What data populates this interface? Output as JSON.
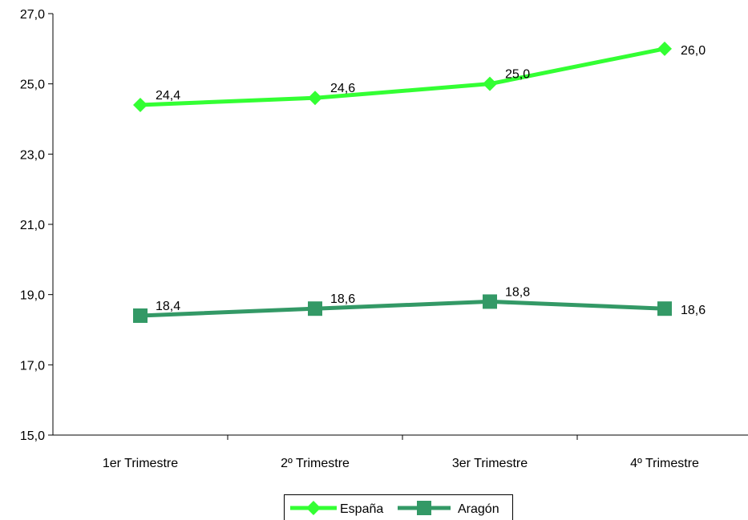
{
  "chart_data": {
    "type": "line",
    "categories": [
      "1er Trimestre",
      "2º Trimestre",
      "3er Trimestre",
      "4º Trimestre"
    ],
    "series": [
      {
        "name": "España",
        "values": [
          24.4,
          24.6,
          25.0,
          26.0
        ],
        "labels": [
          "24,4",
          "24,6",
          "25,0",
          "26,0"
        ],
        "color": "#33ff33",
        "marker": "diamond"
      },
      {
        "name": "Aragón",
        "values": [
          18.4,
          18.6,
          18.8,
          18.6
        ],
        "labels": [
          "18,4",
          "18,6",
          "18,8",
          "18,6"
        ],
        "color": "#339966",
        "marker": "square"
      }
    ],
    "ylim": [
      15,
      27
    ],
    "yticks": [
      15,
      17,
      19,
      21,
      23,
      25,
      27
    ],
    "ytick_labels": [
      "15,0",
      "17,0",
      "19,0",
      "21,0",
      "23,0",
      "25,0",
      "27,0"
    ],
    "grid": false,
    "legend_position": "bottom-center",
    "title": "",
    "xlabel": "",
    "ylabel": ""
  }
}
